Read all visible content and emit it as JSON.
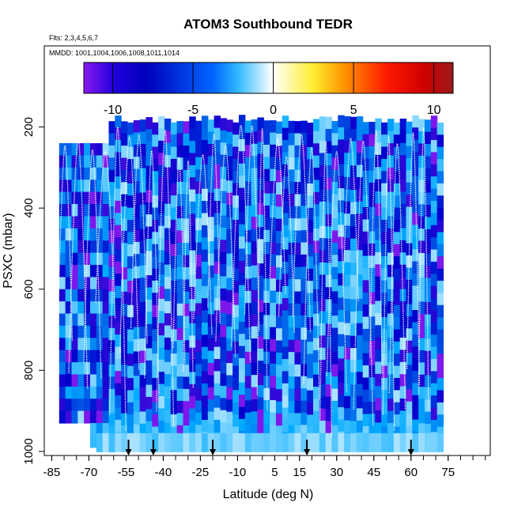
{
  "chart_data": {
    "type": "heatmap",
    "title": "ATOM3 Southbound TEDR",
    "flights_label": "Flts: 2,3,4,5,6,7",
    "dates_label": "MMDD: 1001,1004,1006,1008,1011,1014",
    "xlabel": "Latitude (deg N)",
    "ylabel": "PSXC (mbar)",
    "xlim": [
      -88,
      92
    ],
    "ylim": [
      1010,
      0
    ],
    "x_ticks": [
      -85,
      -70,
      -55,
      -40,
      -25,
      -10,
      5,
      15,
      30,
      45,
      60,
      75
    ],
    "x_tick_labels": [
      "-85",
      "-70",
      "-55",
      "-40",
      "-25",
      "-10",
      "5",
      "15",
      "30",
      "45",
      "60",
      "75"
    ],
    "y_ticks": [
      200,
      400,
      600,
      800,
      1000
    ],
    "y_tick_labels": [
      "200",
      "400",
      "600",
      "800",
      "1000"
    ],
    "colorbar": {
      "min": -11.8,
      "max": 11.2,
      "ticks": [
        -10,
        -5,
        0,
        5,
        10
      ],
      "tick_labels": [
        "-10",
        "-5",
        "0",
        "5",
        "10"
      ],
      "colors": [
        "#8a1aef",
        "#0000cc",
        "#00aaff",
        "#ffffff",
        "#ffe800",
        "#ff6600",
        "#dd0000",
        "#9a1a1a"
      ]
    },
    "data_extent": {
      "lat_range": [
        -82,
        71
      ],
      "pressure_top": [
        170,
        240
      ],
      "pressure_bottom": 965
    },
    "vertical_profile_count": 30,
    "flight_marker_latitudes": [
      -54,
      -44,
      -20,
      18,
      60
    ]
  }
}
